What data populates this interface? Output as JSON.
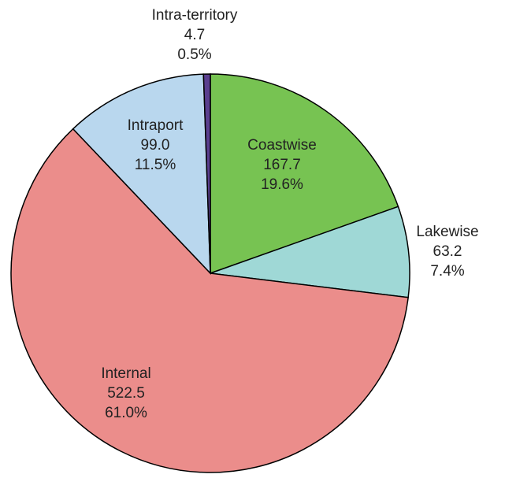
{
  "chart_data": {
    "type": "pie",
    "categories": [
      "Coastwise",
      "Lakewise",
      "Internal",
      "Intraport",
      "Intra-territory"
    ],
    "values": [
      167.7,
      63.2,
      522.5,
      99.0,
      4.7
    ],
    "value_labels": [
      "167.7",
      "63.2",
      "522.5",
      "99.0",
      "4.7"
    ],
    "percents": [
      19.6,
      7.4,
      61.0,
      11.5,
      0.5
    ],
    "percent_labels": [
      "19.6%",
      "7.4%",
      "61.0%",
      "11.5%",
      "0.5%"
    ],
    "colors": [
      "#77c352",
      "#9fd8d6",
      "#eb8d8b",
      "#b9d7ee",
      "#5a3f8f"
    ]
  }
}
